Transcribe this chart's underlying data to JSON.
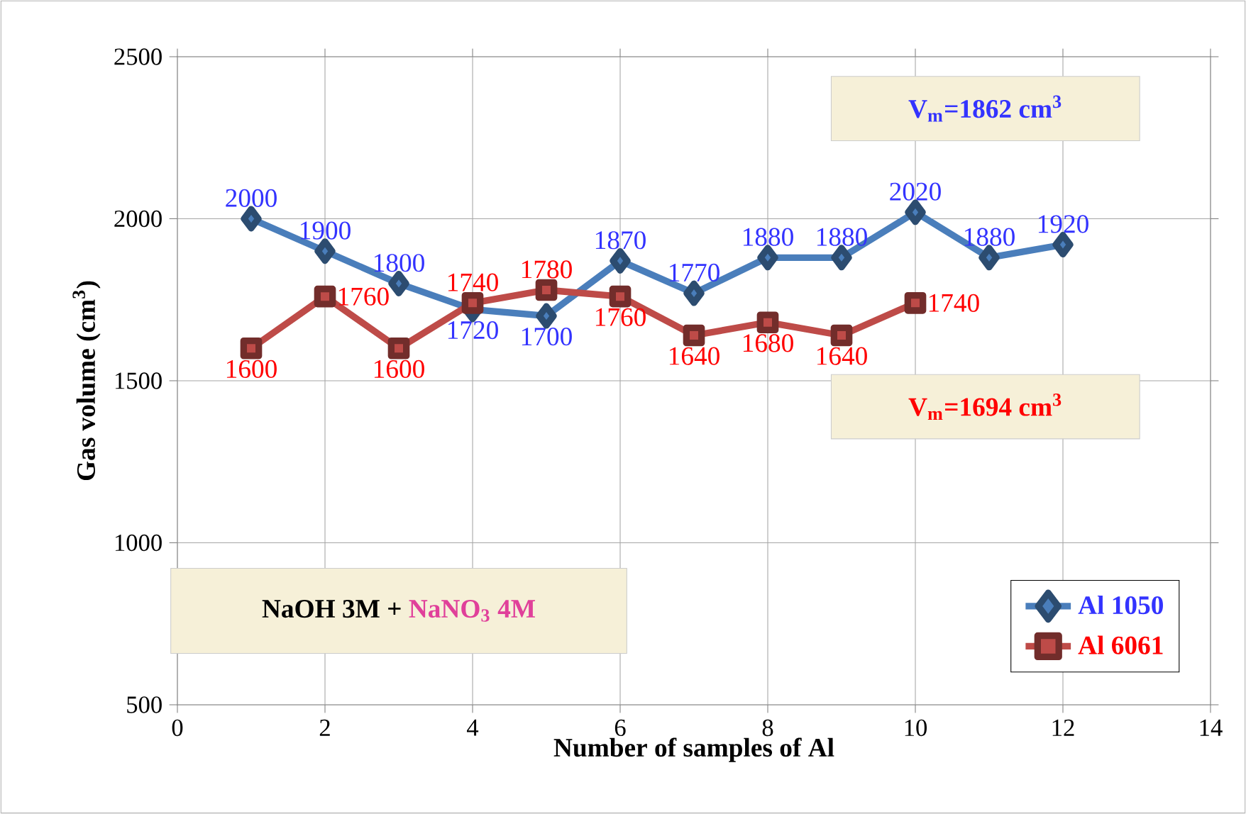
{
  "chart_data": {
    "type": "line",
    "xlabel": "Number of samples of Al",
    "ylabel": "Gas  volume  (cm$^{3}$)",
    "xlim": [
      0,
      14
    ],
    "xticks": [
      0,
      2,
      4,
      6,
      8,
      10,
      12,
      14
    ],
    "ylim": [
      500,
      2500
    ],
    "yticks": [
      500,
      1000,
      1500,
      2000,
      2500
    ],
    "grid": true,
    "legend": "bottom right",
    "data_labels": true,
    "series": [
      {
        "name": "Al 1050",
        "color": "#4a7ebb",
        "marker": "diamond",
        "x": [
          1,
          2,
          3,
          4,
          5,
          6,
          7,
          8,
          9,
          10,
          11,
          12
        ],
        "values": [
          2000,
          1900,
          1800,
          1720,
          1700,
          1870,
          1770,
          1880,
          1880,
          2020,
          1880,
          1920
        ]
      },
      {
        "name": "Al 6061",
        "color": "#be4b48",
        "marker": "square",
        "x": [
          1,
          2,
          3,
          4,
          5,
          6,
          7,
          8,
          9,
          10
        ],
        "values": [
          1600,
          1760,
          1600,
          1740,
          1780,
          1760,
          1640,
          1680,
          1640,
          1740
        ]
      }
    ],
    "annotations": [
      "V$_{m}$=1862 cm$^{3}$",
      "V$_{m}$=1694 cm$^{3}$",
      "NaOH 3M +",
      "NaNO$_{3}$ 4M"
    ]
  }
}
